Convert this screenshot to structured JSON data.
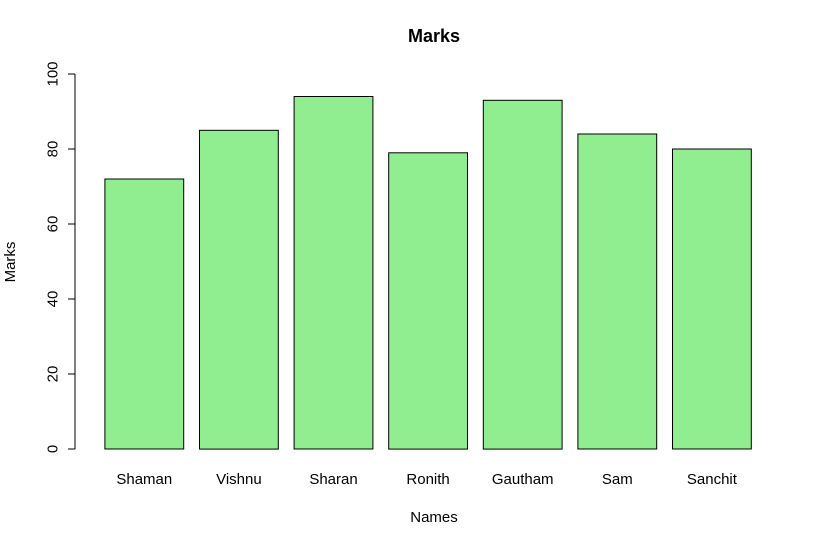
{
  "chart_data": {
    "type": "bar",
    "title": "Marks",
    "xlabel": "Names",
    "ylabel": "Marks",
    "categories": [
      "Shaman",
      "Vishnu",
      "Sharan",
      "Ronith",
      "Gautham",
      "Sam",
      "Sanchit"
    ],
    "values": [
      72,
      85,
      94,
      79,
      93,
      84,
      80
    ],
    "ylim": [
      0,
      100
    ],
    "yticks": [
      0,
      20,
      40,
      60,
      80,
      100
    ],
    "grid": false,
    "legend": "none",
    "bar_color": "#90ee90",
    "bar_edge_color": "#000000"
  }
}
